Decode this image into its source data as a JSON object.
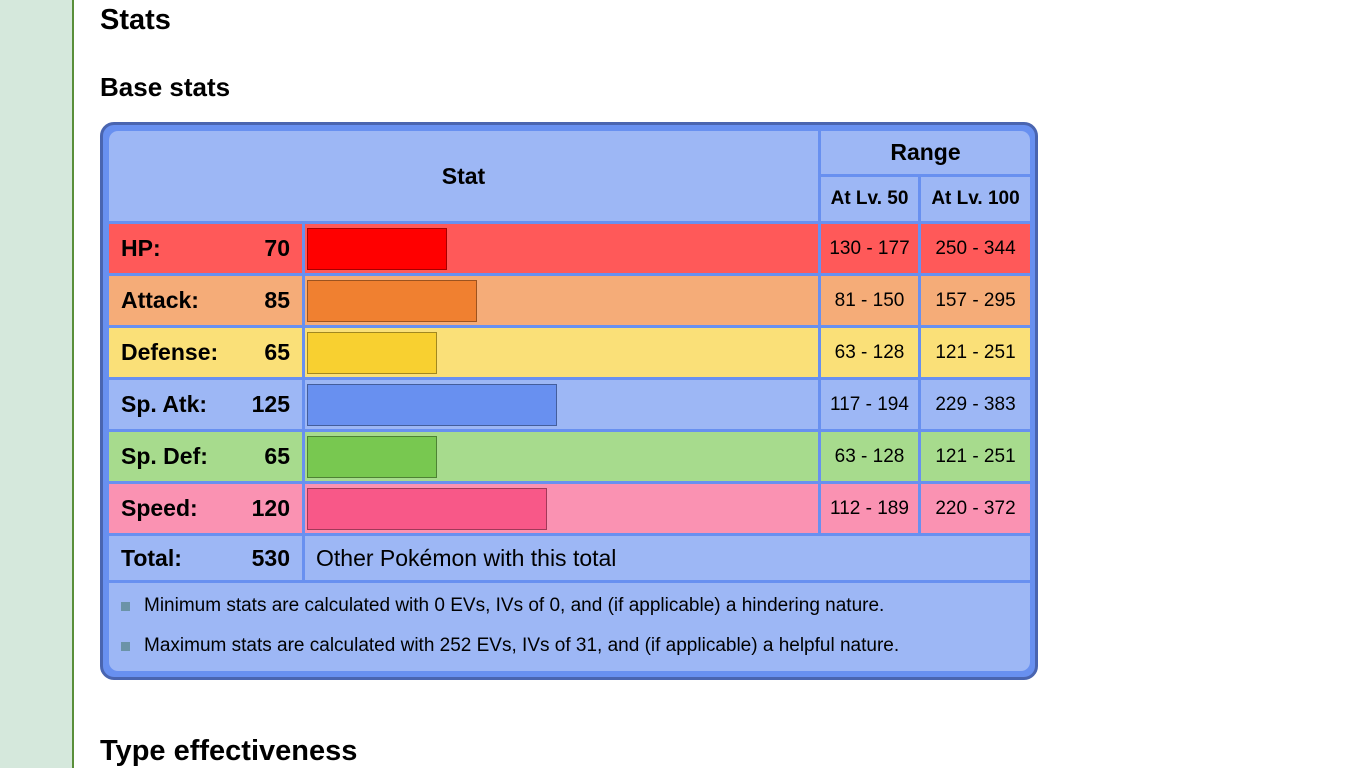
{
  "headings": {
    "stats": "Stats",
    "base_stats": "Base stats",
    "type_effectiveness": "Type effectiveness"
  },
  "table": {
    "header_stat": "Stat",
    "header_range": "Range",
    "header_lv50": "At Lv. 50",
    "header_lv100": "At Lv. 100",
    "rows": [
      {
        "label": "HP:",
        "value": "70",
        "lv50": "130 - 177",
        "lv100": "250 - 344",
        "row_color": "#ff5959",
        "bar_color": "#ff0000",
        "bar_border": "#a60000"
      },
      {
        "label": "Attack:",
        "value": "85",
        "lv50": "81 - 150",
        "lv100": "157 - 295",
        "row_color": "#f5ac78",
        "bar_color": "#f08030",
        "bar_border": "#9c531f"
      },
      {
        "label": "Defense:",
        "value": "65",
        "lv50": "63 - 128",
        "lv100": "121 - 251",
        "row_color": "#fae078",
        "bar_color": "#f8d030",
        "bar_border": "#a1871f"
      },
      {
        "label": "Sp. Atk:",
        "value": "125",
        "lv50": "117 - 194",
        "lv100": "229 - 383",
        "row_color": "#9db7f5",
        "bar_color": "#6890f0",
        "bar_border": "#445e9c"
      },
      {
        "label": "Sp. Def:",
        "value": "65",
        "lv50": "63 - 128",
        "lv100": "121 - 251",
        "row_color": "#a7db8d",
        "bar_color": "#78c850",
        "bar_border": "#4e8234"
      },
      {
        "label": "Speed:",
        "value": "120",
        "lv50": "112 - 189",
        "lv100": "220 - 372",
        "row_color": "#fa92b2",
        "bar_color": "#f85888",
        "bar_border": "#a13959"
      }
    ],
    "total_label": "Total:",
    "total_value": "530",
    "other_link": "Other Pokémon with this total",
    "notes": [
      "Minimum stats are calculated with 0 EVs, IVs of 0, and (if applicable) a hindering nature.",
      "Maximum stats are calculated with 252 EVs, IVs of 31, and (if applicable) a helpful nature."
    ]
  }
}
